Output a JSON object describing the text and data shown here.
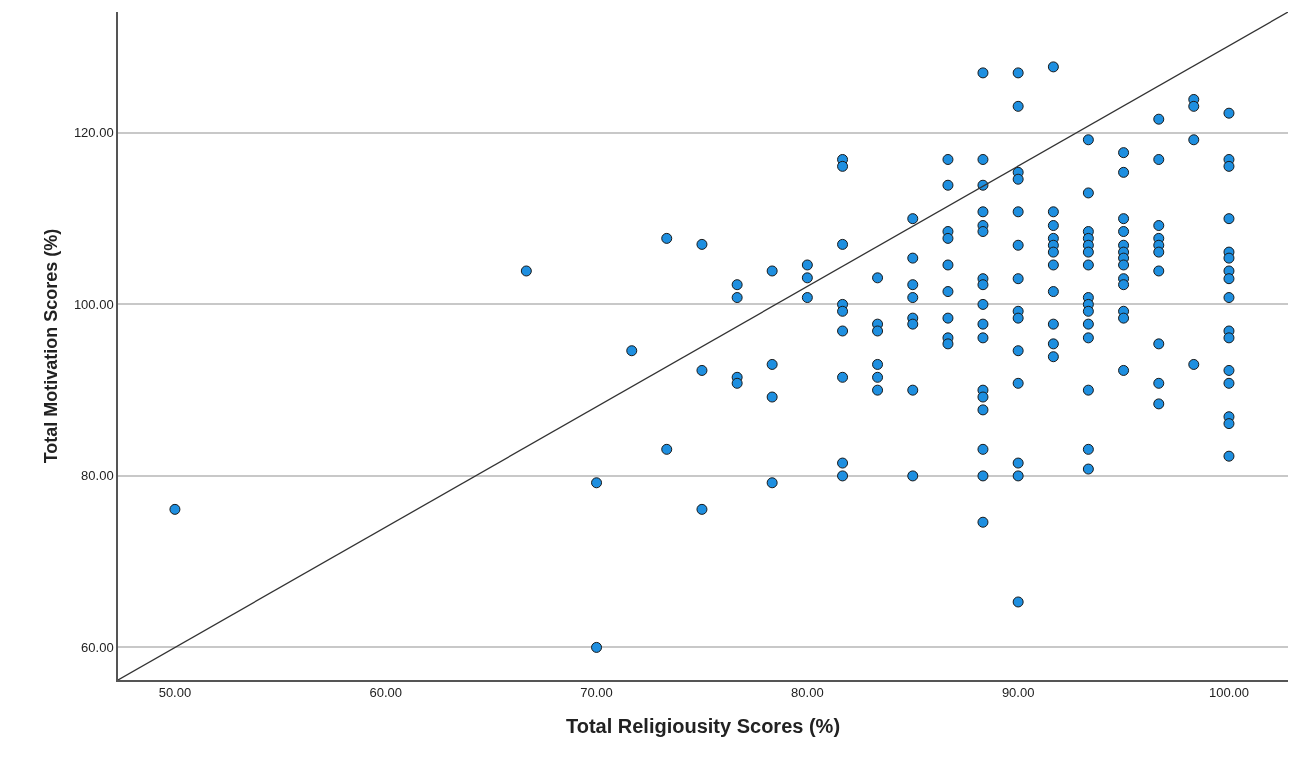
{
  "chart_data": {
    "type": "scatter",
    "xlabel": "Total Religiousity Scores (%)",
    "ylabel": "Total Motivation Scores (%)",
    "xlim": [
      47.3,
      102.8
    ],
    "ylim": [
      56.2,
      134.1
    ],
    "xticks": [
      {
        "value": 50,
        "label": "50.00"
      },
      {
        "value": 60,
        "label": "60.00"
      },
      {
        "value": 70,
        "label": "70.00"
      },
      {
        "value": 80,
        "label": "80.00"
      },
      {
        "value": 90,
        "label": "90.00"
      },
      {
        "value": 100,
        "label": "100.00"
      }
    ],
    "yticks": [
      {
        "value": 60,
        "label": "60.00"
      },
      {
        "value": 80,
        "label": "80.00"
      },
      {
        "value": 100,
        "label": "100.00"
      },
      {
        "value": 120,
        "label": "120.00"
      }
    ],
    "grid": "y",
    "marker": "circle",
    "series": [
      {
        "color": "#1e8fe0",
        "x": [
          50,
          66.67,
          70,
          70,
          71.67,
          73.33,
          73.33,
          75,
          75,
          75,
          76.67,
          76.67,
          76.67,
          76.67,
          78.33,
          78.33,
          78.33,
          78.33,
          80,
          80,
          80,
          81.67,
          81.67,
          81.67,
          81.67,
          81.67,
          81.67,
          81.67,
          81.67,
          81.67,
          83.33,
          83.33,
          83.33,
          83.33,
          83.33,
          83.33,
          85,
          85,
          85,
          85,
          85,
          85,
          85,
          85,
          86.67,
          86.67,
          86.67,
          86.67,
          86.67,
          86.67,
          86.67,
          86.67,
          86.67,
          88.33,
          88.33,
          88.33,
          88.33,
          88.33,
          88.33,
          88.33,
          88.33,
          88.33,
          88.33,
          88.33,
          88.33,
          88.33,
          88.33,
          88.33,
          88.33,
          88.33,
          90,
          90,
          90,
          90,
          90,
          90,
          90,
          90,
          90,
          90,
          90,
          90,
          90,
          90,
          91.67,
          91.67,
          91.67,
          91.67,
          91.67,
          91.67,
          91.67,
          91.67,
          91.67,
          91.67,
          91.67,
          93.33,
          93.33,
          93.33,
          93.33,
          93.33,
          93.33,
          93.33,
          93.33,
          93.33,
          93.33,
          93.33,
          93.33,
          93.33,
          93.33,
          93.33,
          95,
          95,
          95,
          95,
          95,
          95,
          95,
          95,
          95,
          95,
          95,
          95,
          95,
          96.67,
          96.67,
          96.67,
          96.67,
          96.67,
          96.67,
          96.67,
          96.67,
          96.67,
          96.67,
          98.33,
          98.33,
          98.33,
          98.33,
          100,
          100,
          100,
          100,
          100,
          100,
          100,
          100,
          100,
          100,
          100,
          100,
          100,
          100,
          100,
          100
        ],
        "values": [
          76.1,
          103.9,
          79.2,
          60.0,
          94.6,
          107.7,
          83.1,
          107.0,
          92.3,
          76.1,
          102.3,
          100.8,
          91.5,
          90.8,
          103.9,
          93.0,
          89.2,
          79.2,
          104.6,
          103.1,
          100.8,
          116.9,
          116.1,
          107.0,
          100.0,
          99.2,
          96.9,
          91.5,
          81.5,
          80.0,
          103.1,
          97.7,
          96.9,
          93.0,
          91.5,
          90.0,
          110.0,
          105.4,
          102.3,
          100.8,
          98.4,
          97.7,
          90.0,
          80.0,
          116.9,
          113.9,
          108.5,
          107.7,
          104.6,
          101.5,
          98.4,
          96.1,
          95.4,
          127.0,
          116.9,
          113.9,
          110.8,
          109.2,
          108.5,
          103.0,
          102.3,
          100.0,
          97.7,
          96.1,
          90.0,
          89.2,
          87.7,
          83.1,
          80.0,
          74.6,
          127.0,
          123.1,
          115.4,
          114.6,
          110.8,
          106.9,
          103.0,
          99.2,
          98.4,
          94.6,
          90.8,
          81.5,
          80.0,
          65.3,
          127.7,
          110.8,
          109.2,
          107.7,
          106.9,
          106.1,
          104.6,
          101.5,
          97.7,
          95.4,
          93.9,
          119.2,
          113.0,
          108.5,
          107.7,
          106.9,
          106.1,
          104.6,
          100.8,
          100.0,
          99.2,
          97.7,
          96.1,
          90.0,
          83.1,
          80.8,
          117.7,
          115.4,
          110.0,
          108.5,
          106.9,
          106.1,
          105.4,
          104.6,
          103.0,
          102.3,
          99.2,
          98.4,
          92.3,
          121.6,
          116.9,
          109.2,
          107.7,
          106.9,
          106.1,
          103.9,
          95.4,
          90.8,
          88.4,
          123.9,
          123.1,
          119.2,
          93.0,
          122.3,
          116.9,
          116.1,
          110.0,
          106.1,
          105.4,
          103.9,
          103.0,
          100.8,
          96.9,
          96.1,
          92.3,
          90.8,
          86.9,
          86.1,
          82.3
        ]
      },
      {
        "type": "line",
        "marker": "none",
        "color": "#333333",
        "x": [
          47.3,
          102.8
        ],
        "values": [
          56.2,
          134.1
        ]
      }
    ]
  }
}
